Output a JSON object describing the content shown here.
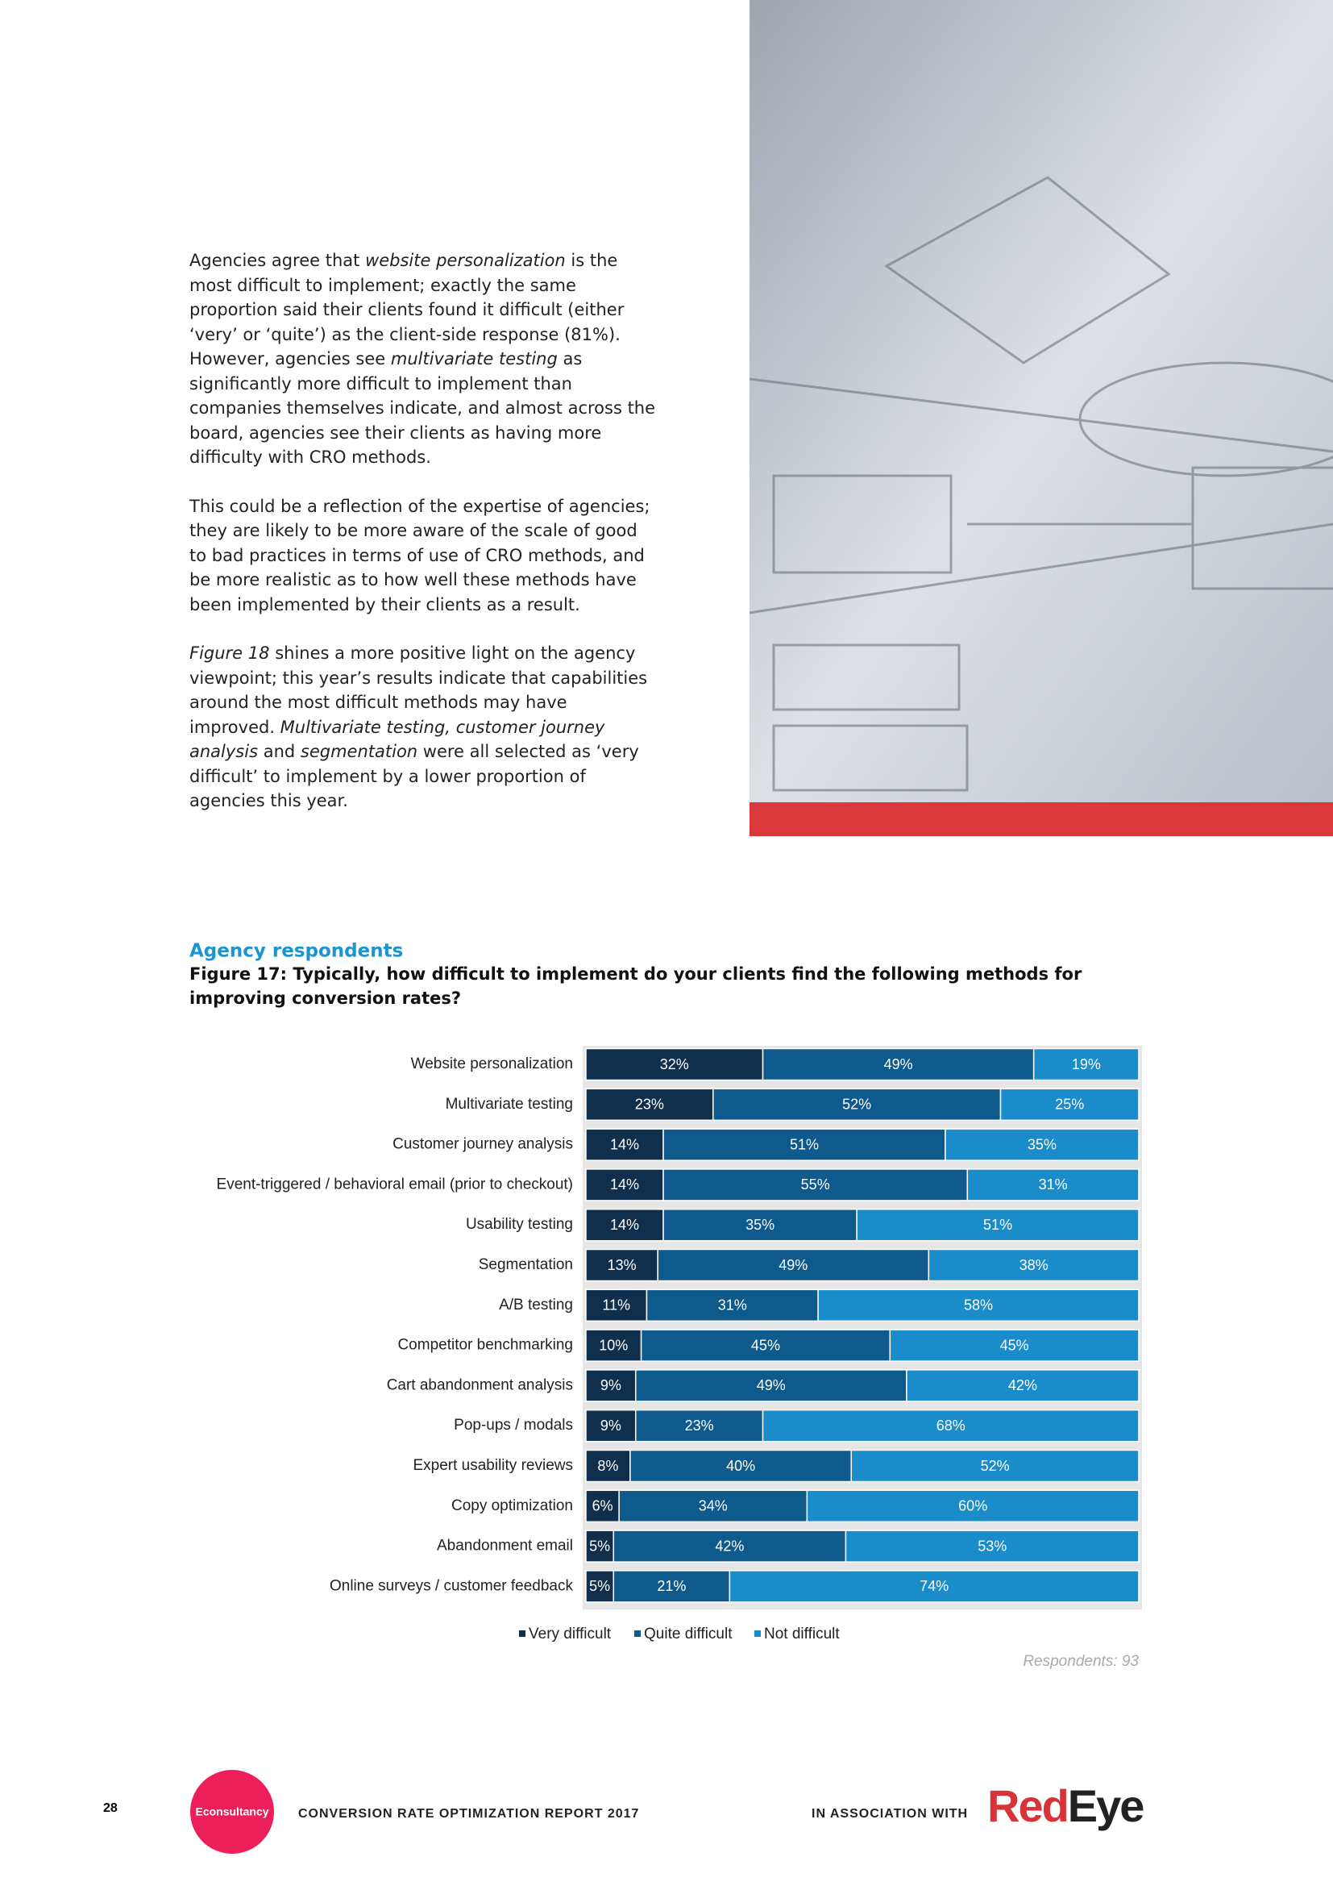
{
  "body": {
    "paragraphs": [
      {
        "runs": [
          {
            "text": "Agencies agree that "
          },
          {
            "text": "website personalization",
            "italic": true
          },
          {
            "text": " is the most difficult to implement; exactly the same proportion said their clients found it difficult (either ‘very’ or ‘quite’) as the client-side response (81%). However, agencies see "
          },
          {
            "text": "multivariate testing",
            "italic": true
          },
          {
            "text": " as significantly more difficult to implement than companies themselves indicate, and almost across the board, agencies see their clients as having more difficulty with CRO methods."
          }
        ]
      },
      {
        "runs": [
          {
            "text": "This could be a reflection of the expertise of agencies; they are likely to be more aware of the scale of good to bad practices in terms of use of CRO methods, and be more realistic as to how well these methods have been implemented by their clients as a result."
          }
        ]
      },
      {
        "runs": [
          {
            "text": "Figure 18",
            "italic": true
          },
          {
            "text": " shines a more positive light on the agency viewpoint; this year’s results indicate that capabilities around the most difficult methods may have improved. "
          },
          {
            "text": "Multivariate testing, customer journey analysis",
            "italic": true
          },
          {
            "text": " and "
          },
          {
            "text": "segmentation",
            "italic": true
          },
          {
            "text": " were all selected as ‘very difficult’ to implement by a lower proportion of agencies this year."
          }
        ]
      }
    ]
  },
  "chart_data": {
    "type": "stacked_barh",
    "section": "Agency respondents",
    "title": "Figure 17: Typically, how difficult to implement do your clients find the following methods for improving conversion rates?",
    "categories": [
      "Website personalization",
      "Multivariate testing",
      "Customer journey analysis",
      "Event-triggered / behavioral email (prior to checkout)",
      "Usability testing",
      "Segmentation",
      "A/B testing",
      "Competitor benchmarking",
      "Cart abandonment analysis",
      "Pop-ups / modals",
      "Expert usability reviews",
      "Copy optimization",
      "Abandonment email",
      "Online surveys / customer feedback"
    ],
    "series": [
      {
        "name": "Very difficult",
        "color": "#0f2f4d",
        "values": [
          32,
          23,
          14,
          14,
          14,
          13,
          11,
          10,
          9,
          9,
          8,
          6,
          5,
          5
        ],
        "value_labels": [
          "32%",
          "23%",
          "14%",
          "14%",
          "14%",
          "13%",
          "11%",
          "10%",
          "9%",
          "9%",
          "8%",
          "6%",
          "5%",
          "5%"
        ]
      },
      {
        "name": "Quite difficult",
        "color": "#0e5a8c",
        "values": [
          49,
          52,
          51,
          55,
          35,
          49,
          31,
          45,
          49,
          23,
          40,
          34,
          42,
          21
        ],
        "value_labels": [
          "49%",
          "52%",
          "51%",
          "55%",
          "35%",
          "49%",
          "31%",
          "45%",
          "49%",
          "23%",
          "40%",
          "34%",
          "42%",
          "21%"
        ]
      },
      {
        "name": "Not difficult",
        "color": "#1a8cc9",
        "values": [
          19,
          25,
          35,
          31,
          51,
          38,
          58,
          45,
          42,
          68,
          52,
          60,
          53,
          74
        ],
        "value_labels": [
          "19%",
          "25%",
          "35%",
          "31%",
          "51%",
          "38%",
          "58%",
          "45%",
          "42%",
          "68%",
          "52%",
          "60%",
          "53%",
          "74%"
        ]
      }
    ],
    "xlim": [
      0,
      100
    ],
    "note": "Respondents: 93"
  },
  "footer": {
    "page": "28",
    "brand": "Econsultancy",
    "report": "CONVERSION RATE OPTIMIZATION REPORT 2017",
    "association": "IN ASSOCIATION WITH",
    "logo": [
      "Red",
      "Eye"
    ]
  }
}
